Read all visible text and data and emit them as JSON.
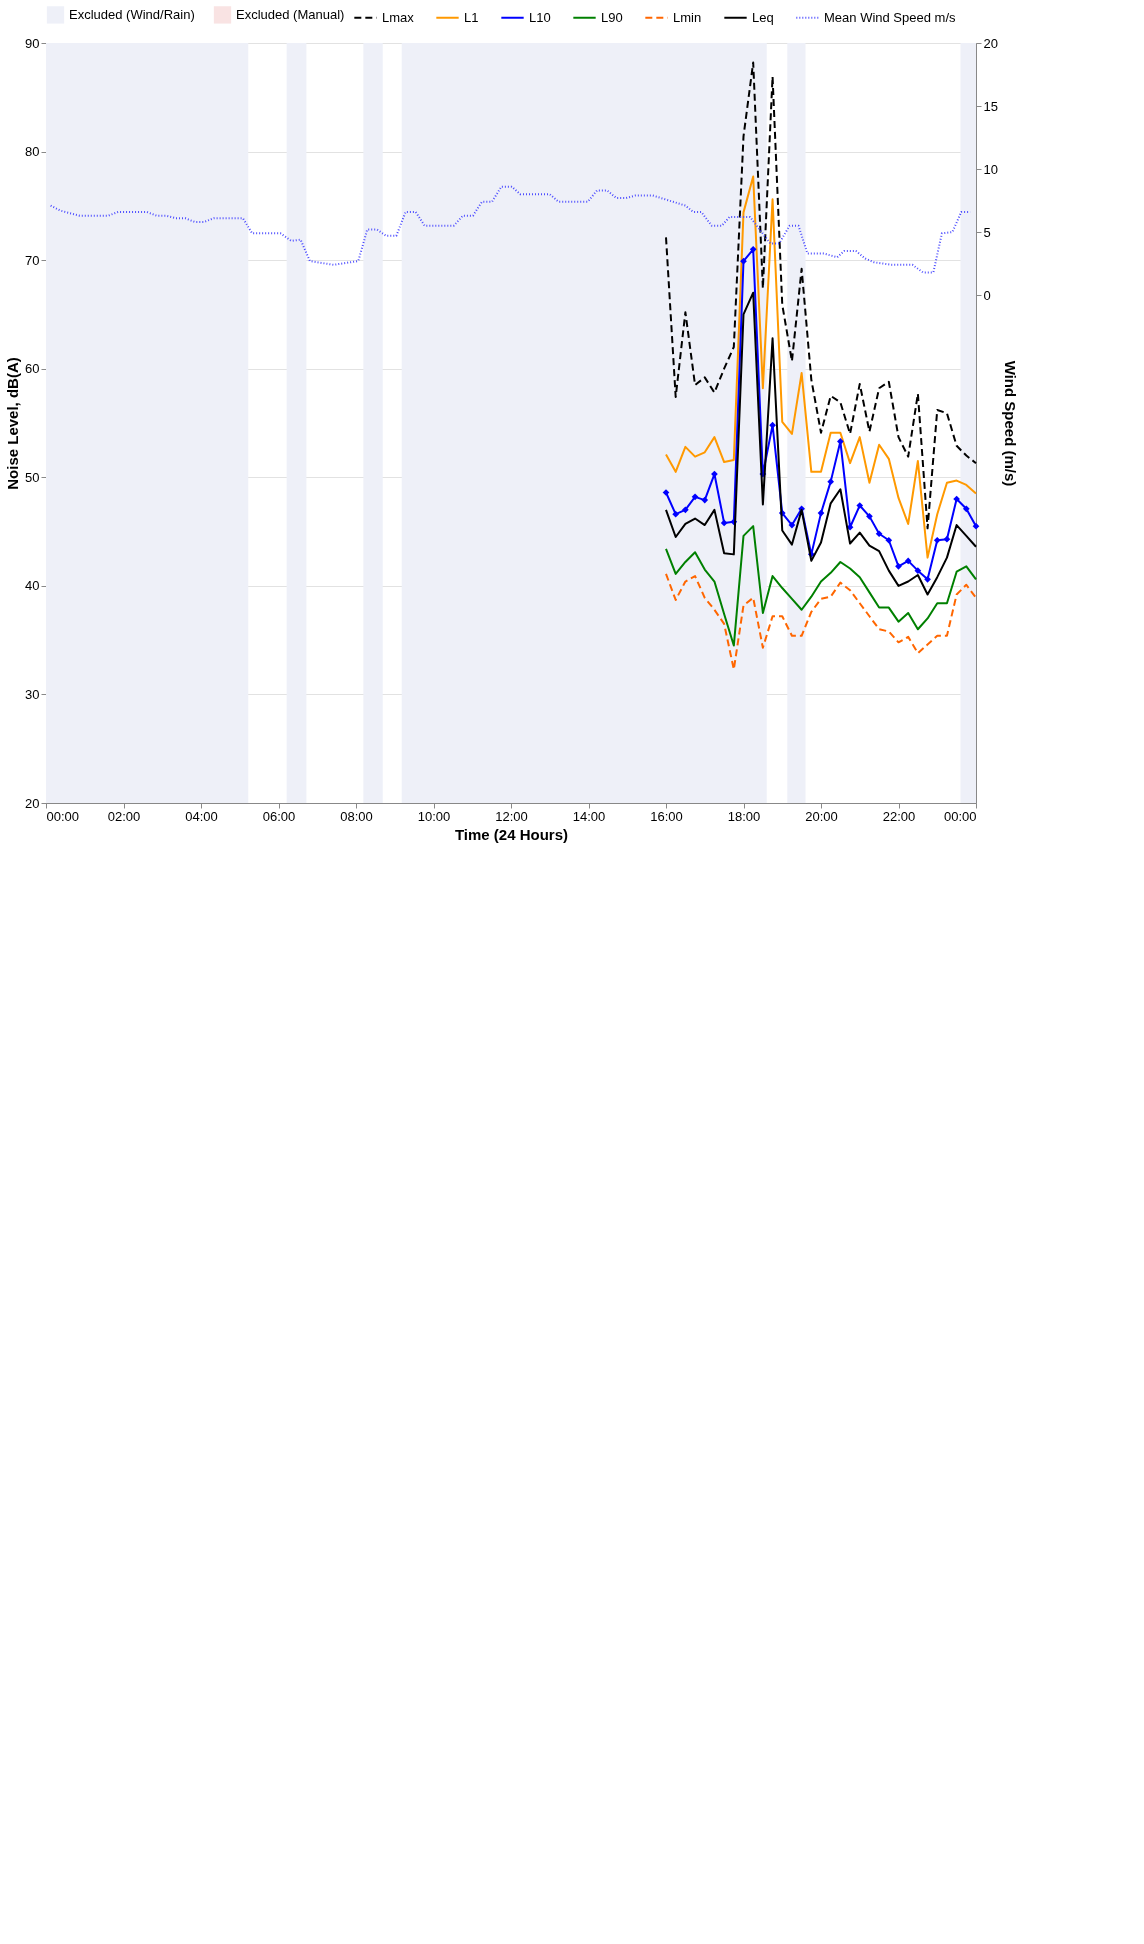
{
  "chart_data": {
    "type": "line",
    "xlabel": "Time (24 Hours)",
    "ylabel": "Noise Level, dB(A)",
    "y2label": "Wind Speed (m/s)",
    "xlim": [
      0,
      24
    ],
    "xticks": [
      {
        "value": 0,
        "label": "00:00"
      },
      {
        "value": 2,
        "label": "02:00"
      },
      {
        "value": 4,
        "label": "04:00"
      },
      {
        "value": 6,
        "label": "06:00"
      },
      {
        "value": 8,
        "label": "08:00"
      },
      {
        "value": 10,
        "label": "10:00"
      },
      {
        "value": 12,
        "label": "12:00"
      },
      {
        "value": 14,
        "label": "14:00"
      },
      {
        "value": 16,
        "label": "16:00"
      },
      {
        "value": 18,
        "label": "18:00"
      },
      {
        "value": 20,
        "label": "20:00"
      },
      {
        "value": 22,
        "label": "22:00"
      },
      {
        "value": 24,
        "label": "00:00"
      }
    ],
    "ylim": [
      20,
      90
    ],
    "yticks": [
      20,
      30,
      40,
      50,
      60,
      70,
      80,
      90
    ],
    "y2lim": [
      -40.3,
      20
    ],
    "y2ticks": [
      0,
      5,
      10,
      15,
      20
    ],
    "grid": "y",
    "legend": "top",
    "bands": [
      {
        "axis": "x",
        "from": 0,
        "to": 5.22,
        "label": "Excluded (Wind/Rain)",
        "color": "#eef0f8"
      },
      {
        "axis": "x",
        "from": 6.21,
        "to": 6.72,
        "color": "#eef0f8"
      },
      {
        "axis": "x",
        "from": 8.19,
        "to": 8.69,
        "color": "#eef0f8"
      },
      {
        "axis": "x",
        "from": 9.18,
        "to": 18.6,
        "color": "#eef0f8"
      },
      {
        "axis": "x",
        "from": 19.13,
        "to": 19.6,
        "color": "#eef0f8"
      },
      {
        "axis": "x",
        "from": 23.6,
        "to": 24,
        "color": "#eef0f8"
      }
    ],
    "x": [
      16,
      16.25,
      16.5,
      16.75,
      17,
      17.25,
      17.5,
      17.75,
      18,
      18.25,
      18.5,
      18.75,
      19,
      19.25,
      19.5,
      19.75,
      20,
      20.25,
      20.5,
      20.75,
      21,
      21.25,
      21.5,
      21.75,
      22,
      22.25,
      22.5,
      22.75,
      23,
      23.25,
      23.5,
      23.75,
      24
    ],
    "series": [
      {
        "name": "Lmax",
        "color": "#000000",
        "line_style": "dashed",
        "values": [
          72.1,
          57.4,
          65.2,
          58.5,
          59.2,
          57.8,
          60.0,
          62.0,
          81.4,
          88.2,
          67.4,
          86.9,
          65.9,
          60.7,
          69.2,
          59.0,
          54.1,
          57.5,
          56.9,
          54.0,
          58.6,
          54.2,
          58.2,
          58.8,
          53.7,
          51.9,
          57.7,
          45.3,
          56.2,
          55.9,
          52.9,
          52.0,
          51.3
        ]
      },
      {
        "name": "L1",
        "color": "#ff9900",
        "line_style": "solid",
        "values": [
          52.1,
          50.5,
          52.8,
          51.9,
          52.3,
          53.7,
          51.4,
          51.6,
          74.4,
          77.7,
          58.2,
          75.6,
          55.1,
          54.0,
          59.6,
          50.5,
          50.5,
          54.1,
          54.1,
          51.3,
          53.7,
          49.5,
          53.0,
          51.7,
          48.1,
          45.7,
          51.5,
          42.6,
          46.6,
          49.5,
          49.7,
          49.3,
          48.5
        ]
      },
      {
        "name": "L10",
        "color": "#0000ff",
        "line_style": "solid",
        "marker": "diamond",
        "values": [
          48.6,
          46.6,
          47.0,
          48.2,
          47.9,
          50.3,
          45.8,
          45.9,
          69.9,
          71.0,
          50.3,
          54.8,
          46.7,
          45.6,
          47.1,
          42.9,
          46.7,
          49.6,
          53.3,
          45.4,
          47.4,
          46.4,
          44.8,
          44.2,
          41.8,
          42.3,
          41.4,
          40.6,
          44.2,
          44.3,
          48.0,
          47.1,
          45.5
        ]
      },
      {
        "name": "L90",
        "color": "#008000",
        "line_style": "solid",
        "values": [
          43.4,
          41.1,
          42.2,
          43.1,
          41.5,
          40.4,
          37.4,
          34.5,
          44.6,
          45.5,
          37.5,
          40.9,
          39.8,
          38.8,
          37.8,
          39.0,
          40.4,
          41.2,
          42.2,
          41.6,
          40.8,
          39.4,
          38.0,
          38.0,
          36.7,
          37.5,
          36.0,
          37.0,
          38.4,
          38.4,
          41.3,
          41.8,
          40.6
        ]
      },
      {
        "name": "Lmin",
        "color": "#ff6600",
        "line_style": "dashed",
        "values": [
          41.1,
          38.7,
          40.4,
          40.9,
          38.9,
          37.8,
          36.5,
          32.3,
          38.2,
          38.9,
          34.3,
          37.2,
          37.2,
          35.4,
          35.4,
          37.6,
          38.8,
          39.0,
          40.3,
          39.6,
          38.4,
          37.2,
          36.0,
          35.8,
          34.8,
          35.3,
          33.8,
          34.6,
          35.4,
          35.4,
          39.2,
          40.1,
          38.9
        ]
      },
      {
        "name": "Leq",
        "color": "#000000",
        "line_style": "solid",
        "values": [
          47.0,
          44.5,
          45.7,
          46.2,
          45.6,
          47.0,
          43.0,
          42.9,
          65.0,
          67.0,
          47.5,
          62.8,
          45.1,
          43.8,
          47.0,
          42.3,
          44.0,
          47.6,
          48.9,
          43.9,
          44.9,
          43.7,
          43.2,
          41.4,
          40.0,
          40.4,
          41.0,
          39.2,
          40.8,
          42.6,
          45.6,
          44.6,
          43.6
        ]
      },
      {
        "name": "Mean Wind Speed m/s",
        "color": "#4d4dff",
        "line_style": "dotted",
        "axis": "y2",
        "x": [
          0.12,
          0.37,
          0.87,
          1.61,
          1.86,
          2.6,
          2.85,
          3.09,
          3.34,
          3.59,
          3.84,
          4.08,
          4.33,
          5.08,
          5.32,
          6.05,
          6.33,
          6.57,
          6.81,
          7.42,
          8.06,
          8.29,
          8.54,
          8.78,
          9.04,
          9.28,
          9.54,
          9.77,
          10.52,
          10.76,
          11.02,
          11.25,
          11.51,
          11.75,
          12.02,
          12.24,
          13.0,
          13.23,
          13.98,
          14.22,
          14.48,
          14.72,
          14.97,
          15.21,
          15.66,
          16.5,
          16.7,
          16.91,
          17.18,
          17.44,
          17.64,
          18.17,
          18.69,
          18.92,
          19.19,
          19.42,
          19.65,
          20.07,
          20.42,
          20.6,
          20.9,
          21.14,
          21.37,
          21.83,
          22.36,
          22.63,
          22.9,
          23.12,
          23.39,
          23.62,
          23.85
        ],
        "values": [
          7.1,
          6.7,
          6.3,
          6.3,
          6.6,
          6.6,
          6.3,
          6.3,
          6.1,
          6.1,
          5.8,
          5.8,
          6.1,
          6.1,
          4.9,
          4.9,
          4.3,
          4.4,
          2.7,
          2.4,
          2.7,
          5.2,
          5.2,
          4.7,
          4.7,
          6.6,
          6.6,
          5.5,
          5.5,
          6.3,
          6.3,
          7.4,
          7.4,
          8.6,
          8.6,
          8.0,
          8.0,
          7.4,
          7.4,
          8.3,
          8.3,
          7.7,
          7.7,
          7.9,
          7.9,
          7.1,
          6.6,
          6.6,
          5.5,
          5.5,
          6.2,
          6.2,
          4.1,
          4.1,
          5.5,
          5.5,
          3.3,
          3.3,
          3.0,
          3.5,
          3.5,
          2.9,
          2.6,
          2.4,
          2.4,
          1.8,
          1.8,
          4.9,
          5.0,
          6.6,
          6.6
        ]
      },
      {
        "name": "Excluded (Manual)",
        "type": "area",
        "color": "#f9e3e3",
        "values": [
          null,
          null,
          null,
          null,
          null,
          null,
          null,
          null,
          null,
          null,
          null,
          null,
          null,
          null,
          null,
          null,
          null,
          null,
          null,
          null,
          null,
          null,
          null,
          null,
          null,
          null,
          null,
          null,
          null,
          null,
          null,
          null,
          null
        ]
      }
    ]
  }
}
